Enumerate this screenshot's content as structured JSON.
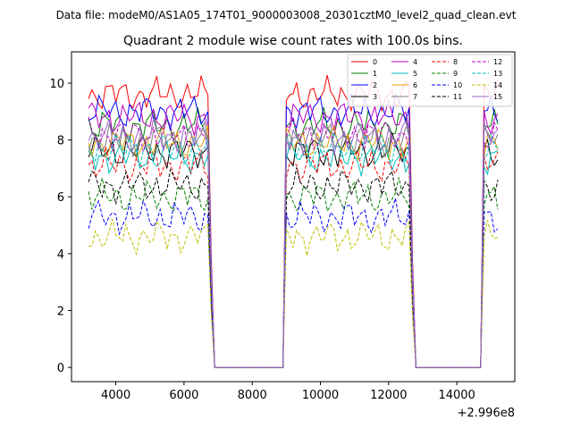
{
  "header": {
    "data_file_label": "Data file: modeM0/AS1A05_174T01_9000003008_20301cztM0_level2_quad_clean.evt"
  },
  "chart_data": {
    "type": "line",
    "title": "Quadrant 2 module wise count rates with 100.0s bins.",
    "xlabel": "",
    "ylabel": "",
    "x_offset_label": "+2.996e8",
    "xlim": [
      2700,
      15700
    ],
    "ylim": [
      -0.5,
      11.1
    ],
    "x_ticks": [
      4000,
      6000,
      8000,
      10000,
      12000,
      14000
    ],
    "x_tick_labels": [
      "4000",
      "6000",
      "8000",
      "10000",
      "12000",
      "14000"
    ],
    "y_ticks": [
      0,
      2,
      4,
      6,
      8,
      10
    ],
    "y_tick_labels": [
      "0",
      "2",
      "4",
      "6",
      "8",
      "10"
    ],
    "grid": false,
    "legend_position": "top-right",
    "legend_columns": 4,
    "segments": [
      {
        "start": 3200,
        "end": 6700,
        "ramp_end": 6800
      },
      {
        "start": 9000,
        "end": 12600,
        "ramp_end": 12700
      },
      {
        "start": 14800,
        "end": 15200,
        "ramp_end": 15200
      }
    ],
    "series": [
      {
        "name": "0",
        "color": "#ff0000",
        "style": "solid",
        "level": 9.6
      },
      {
        "name": "1",
        "color": "#008000",
        "style": "solid",
        "level": 8.5
      },
      {
        "name": "2",
        "color": "#0000ff",
        "style": "solid",
        "level": 9.0
      },
      {
        "name": "3",
        "color": "#000000",
        "style": "solid",
        "level": 7.6
      },
      {
        "name": "4",
        "color": "#bf00bf",
        "style": "solid",
        "level": 8.8
      },
      {
        "name": "5",
        "color": "#00bfbf",
        "style": "solid",
        "level": 7.4
      },
      {
        "name": "6",
        "color": "#e5a000",
        "style": "solid",
        "level": 7.9
      },
      {
        "name": "7",
        "color": "#808080",
        "style": "solid",
        "level": 8.0
      },
      {
        "name": "8",
        "color": "#ff0000",
        "style": "dashed",
        "level": 7.1
      },
      {
        "name": "9",
        "color": "#008000",
        "style": "dashed",
        "level": 6.0
      },
      {
        "name": "10",
        "color": "#0000ff",
        "style": "dashed",
        "level": 5.3
      },
      {
        "name": "11",
        "color": "#000000",
        "style": "dashed",
        "level": 6.4
      },
      {
        "name": "12",
        "color": "#bf00bf",
        "style": "dashed",
        "level": 8.2
      },
      {
        "name": "13",
        "color": "#00bfbf",
        "style": "dashed",
        "level": 7.7
      },
      {
        "name": "14",
        "color": "#bfbf00",
        "style": "dashed",
        "level": 4.6
      },
      {
        "name": "15",
        "color": "#9966cc",
        "style": "solid",
        "level": 8.1
      }
    ]
  }
}
